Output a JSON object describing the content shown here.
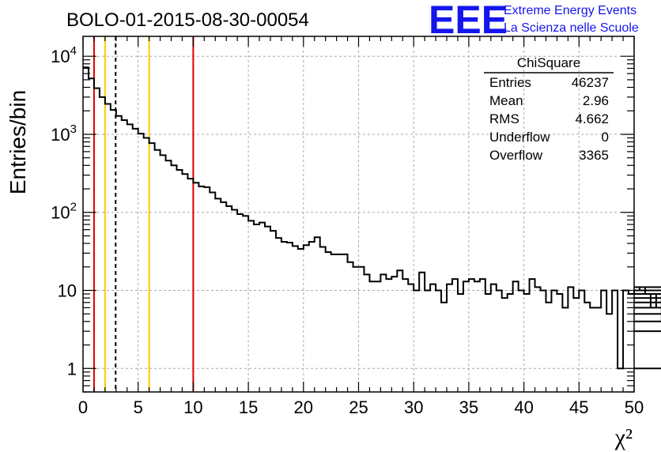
{
  "chart_data": {
    "type": "bar",
    "title": "BOLO-01-2015-08-30-00054",
    "xlabel": "χ²",
    "ylabel": "Entries/bin",
    "xlim": [
      0,
      50
    ],
    "ylim": [
      0.5,
      18000
    ],
    "yscale": "log",
    "grid": true,
    "bin_width": 0.5,
    "x_ticks": [
      "0",
      "5",
      "10",
      "15",
      "20",
      "25",
      "30",
      "35",
      "40",
      "45",
      "50"
    ],
    "y_ticks": [
      {
        "value": 1,
        "base": "1",
        "exp": ""
      },
      {
        "value": 10,
        "base": "10",
        "exp": ""
      },
      {
        "value": 100,
        "base": "10",
        "exp": "2"
      },
      {
        "value": 1000,
        "base": "10",
        "exp": "3"
      },
      {
        "value": 10000,
        "base": "10",
        "exp": "4"
      }
    ],
    "values": [
      7200,
      5200,
      3900,
      3000,
      2450,
      2050,
      1720,
      1520,
      1340,
      1180,
      1020,
      900,
      770,
      630,
      540,
      460,
      400,
      350,
      310,
      270,
      240,
      215,
      210,
      180,
      150,
      135,
      120,
      108,
      95,
      90,
      78,
      70,
      74,
      66,
      58,
      47,
      42,
      41,
      37,
      34,
      38,
      42,
      48,
      36,
      31,
      29,
      29,
      29,
      23,
      20,
      20,
      16,
      13,
      13,
      16,
      14,
      15,
      18,
      14,
      12,
      10,
      17,
      10,
      12,
      10,
      7,
      12,
      14,
      9,
      13,
      14,
      13,
      14,
      9,
      12,
      10,
      8,
      9,
      13,
      10,
      9,
      14,
      11,
      10,
      7,
      10,
      9,
      6,
      11,
      8,
      10,
      7,
      6,
      6,
      10,
      5,
      10,
      1,
      10,
      9,
      10,
      11,
      9,
      6,
      9,
      4,
      10,
      10,
      7,
      1,
      10,
      3,
      9,
      7,
      9,
      8,
      1,
      8,
      9,
      4,
      6,
      9,
      10,
      10,
      9,
      11,
      7,
      10,
      6,
      6,
      10,
      5,
      6,
      10,
      10,
      9
    ],
    "markers": [
      {
        "x": 1,
        "color": "#dd0000",
        "style": "solid"
      },
      {
        "x": 2,
        "color": "#ffcc00",
        "style": "solid"
      },
      {
        "x": 2.96,
        "color": "#000000",
        "style": "dashed"
      },
      {
        "x": 6,
        "color": "#ffcc00",
        "style": "solid"
      },
      {
        "x": 10,
        "color": "#dd0000",
        "style": "solid"
      }
    ],
    "stats": {
      "title": "ChiSquare",
      "rows": [
        {
          "label": "Entries",
          "value": "46237"
        },
        {
          "label": "Mean",
          "value": "2.96"
        },
        {
          "label": "RMS",
          "value": "4.662"
        },
        {
          "label": "Underflow",
          "value": "0"
        },
        {
          "label": "Overflow",
          "value": "3365"
        }
      ]
    }
  },
  "logo": {
    "text": "EEE",
    "line1": "Extreme Energy Events",
    "line2": "La Scienza nelle Scuole",
    "color": "#1515ee"
  }
}
